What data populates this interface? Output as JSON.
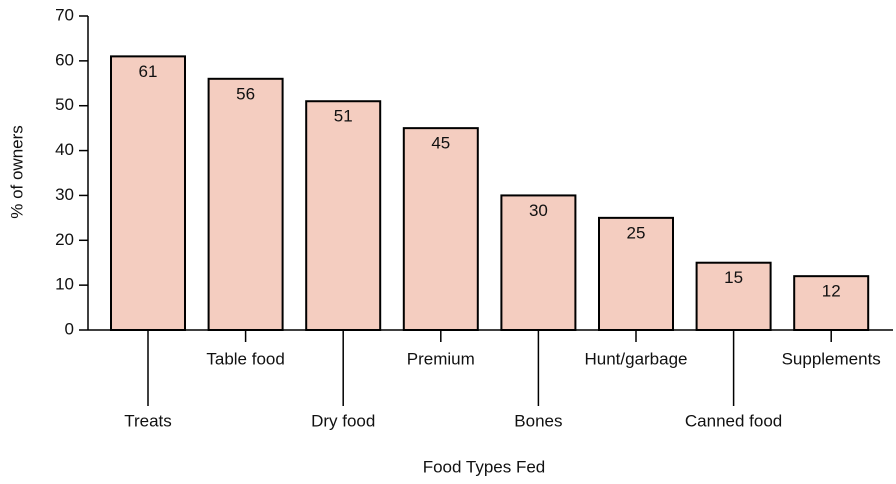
{
  "chart_data": {
    "type": "bar",
    "xlabel": "Food Types Fed",
    "ylabel": "% of owners",
    "categories": [
      "Treats",
      "Table food",
      "Dry food",
      "Premium",
      "Bones",
      "Hunt/garbage",
      "Canned food",
      "Supplements"
    ],
    "values": [
      61,
      56,
      51,
      45,
      30,
      25,
      15,
      12
    ],
    "color": "#f4cdc0",
    "ylim": [
      0,
      70
    ],
    "yticks": [
      0,
      10,
      20,
      30,
      40,
      50,
      60,
      70
    ]
  }
}
